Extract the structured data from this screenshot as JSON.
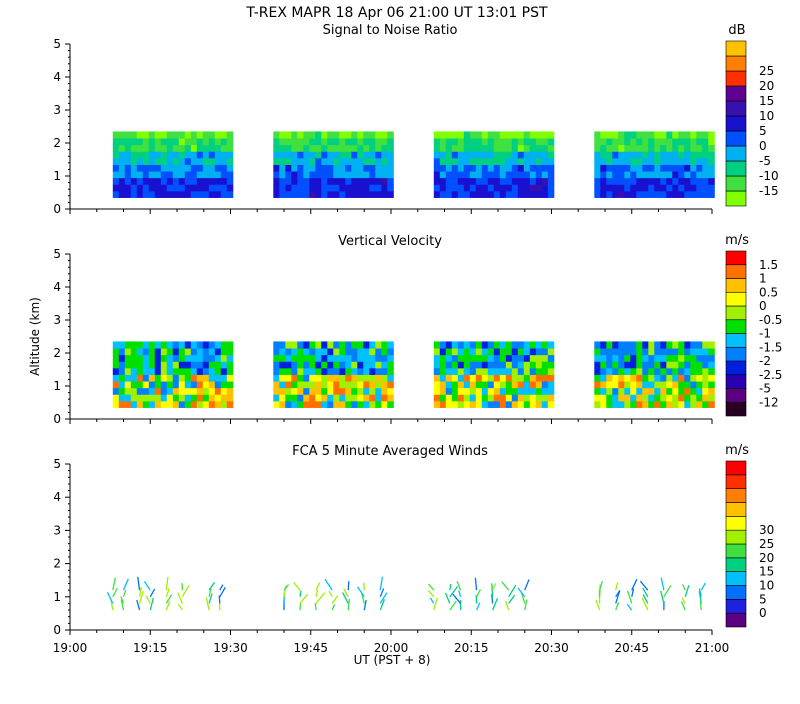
{
  "header": {
    "title": "T-REX  MAPR 18 Apr 06  21:00 UT  13:01  PST"
  },
  "chart_data": [
    {
      "type": "heatmap",
      "title": "Signal to Noise Ratio",
      "ylabel": "",
      "units": "dB",
      "ylim": [
        0,
        5
      ],
      "yticks": [
        "0",
        "1",
        "2",
        "3",
        "4",
        "5"
      ],
      "xlim": [
        "19:00",
        "21:00"
      ],
      "colorbar": {
        "colors": [
          "#80ff00",
          "#40e040",
          "#00d080",
          "#00b0f0",
          "#0050ff",
          "#1a10d0",
          "#3a0fb0",
          "#600090",
          "#ff3000",
          "#ff8000",
          "#ffc000"
        ],
        "labels": [
          "-15",
          "-10",
          "-5",
          "0",
          "5",
          "10",
          "15",
          "20",
          "25"
        ]
      },
      "data_segments": [
        [
          "19:08",
          "19:30"
        ],
        [
          "19:38",
          "20:00"
        ],
        [
          "20:08",
          "20:30"
        ],
        [
          "20:38",
          "21:00"
        ]
      ]
    },
    {
      "type": "heatmap",
      "title": "Vertical Velocity",
      "ylabel": "Altitude (km)",
      "units": "m/s",
      "ylim": [
        0,
        5
      ],
      "yticks": [
        "0",
        "1",
        "2",
        "3",
        "4",
        "5"
      ],
      "xlim": [
        "19:00",
        "21:00"
      ],
      "colorbar": {
        "colors": [
          "#2a0020",
          "#5a0080",
          "#2a00b0",
          "#0020e0",
          "#0080ff",
          "#00c0ff",
          "#00e000",
          "#a0f000",
          "#ffff00",
          "#ffc000",
          "#ff7000",
          "#ff0000"
        ],
        "labels": [
          "-12",
          "-5",
          "-2.5",
          "-2",
          "-1.5",
          "-1",
          "-0.5",
          "0",
          "0.5",
          "1",
          "1.5"
        ]
      },
      "data_segments": [
        [
          "19:08",
          "19:30"
        ],
        [
          "19:38",
          "20:00"
        ],
        [
          "20:08",
          "20:30"
        ],
        [
          "20:38",
          "21:00"
        ]
      ]
    },
    {
      "type": "scatter",
      "title": "FCA 5 Minute Averaged Winds",
      "ylabel": "",
      "units": "m/s",
      "ylim": [
        0,
        5
      ],
      "yticks": [
        "0",
        "1",
        "2",
        "3",
        "4",
        "5"
      ],
      "xlabel": "UT  (PST + 8)",
      "xticks": [
        "19:00",
        "19:15",
        "19:30",
        "19:45",
        "20:00",
        "20:15",
        "20:30",
        "20:45",
        "21:00"
      ],
      "colorbar": {
        "colors": [
          "#5a0080",
          "#2020e0",
          "#0070ff",
          "#00c0ff",
          "#00d080",
          "#40e040",
          "#a0f000",
          "#ffff00",
          "#ffc000",
          "#ff8000",
          "#ff3000",
          "#ff0000"
        ],
        "labels": [
          "0",
          "5",
          "10",
          "15",
          "20",
          "25",
          "30"
        ]
      },
      "wind_times": [
        "19:08",
        "19:10",
        "19:13",
        "19:15",
        "19:18",
        "19:21",
        "19:26",
        "19:28",
        "19:40",
        "19:43",
        "19:46",
        "19:49",
        "19:52",
        "19:55",
        "19:58",
        "20:08",
        "20:11",
        "20:13",
        "20:16",
        "20:19",
        "20:22",
        "20:25",
        "20:39",
        "20:42",
        "20:45",
        "20:48",
        "20:51",
        "20:55",
        "20:58"
      ],
      "wind_altitudes_km": [
        0.6,
        0.8,
        1.0,
        1.2
      ]
    }
  ]
}
